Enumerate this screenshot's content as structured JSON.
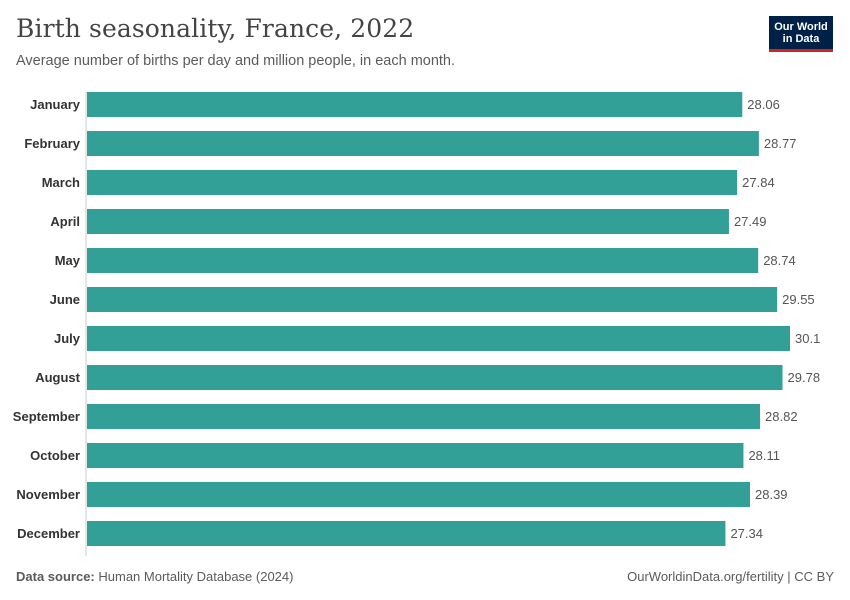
{
  "header": {
    "title": "Birth seasonality, France, 2022",
    "subtitle": "Average number of births per day and million people, in each month."
  },
  "logo": {
    "line1": "Our World",
    "line2": "in Data"
  },
  "footer": {
    "source_label": "Data source:",
    "source_text": "Human Mortality Database (2024)",
    "right_text": "OurWorldinData.org/fertility | CC BY"
  },
  "colors": {
    "bar": "#33a097",
    "axis": "#cccccc",
    "label": "#333333",
    "value": "#555555",
    "brand": "#002147",
    "brand_accent": "#ce261e"
  },
  "chart_data": {
    "type": "bar",
    "orientation": "horizontal",
    "title": "Birth seasonality, France, 2022",
    "subtitle": "Average number of births per day and million people, in each month.",
    "categories": [
      "January",
      "February",
      "March",
      "April",
      "May",
      "June",
      "July",
      "August",
      "September",
      "October",
      "November",
      "December"
    ],
    "values": [
      28.06,
      28.77,
      27.84,
      27.49,
      28.74,
      29.55,
      30.1,
      29.78,
      28.82,
      28.11,
      28.39,
      27.34
    ],
    "value_labels": [
      "28.06",
      "28.77",
      "27.84",
      "27.49",
      "28.74",
      "29.55",
      "30.1",
      "29.78",
      "28.82",
      "28.11",
      "28.39",
      "27.34"
    ],
    "xlim": [
      0,
      30.1
    ],
    "grid": false,
    "legend": "none"
  }
}
